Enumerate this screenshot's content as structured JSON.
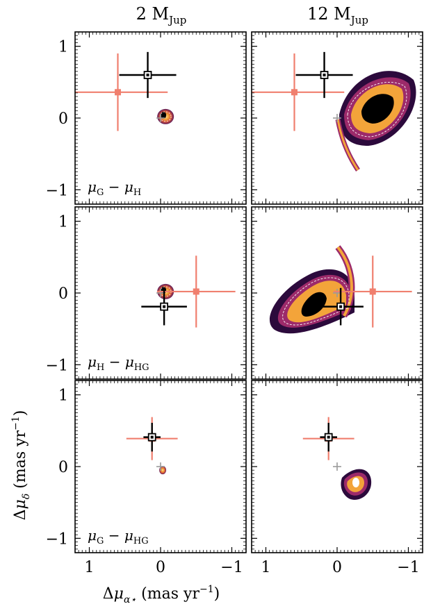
{
  "chart_data": {
    "type": "scatter",
    "column_titles": [
      "2 M_Jup",
      "12 M_Jup"
    ],
    "column_title_parts": [
      {
        "main": "2 M",
        "sub": "Jup"
      },
      {
        "main": "12 M",
        "sub": "Jup"
      }
    ],
    "row_labels": [
      {
        "text": "μG − μH",
        "a": "μ",
        "as": "G",
        "b": "μ",
        "bs": "H"
      },
      {
        "text": "μH − μHG",
        "a": "μ",
        "as": "H",
        "b": "μ",
        "bs": "HG"
      },
      {
        "text": "μG − μHG",
        "a": "μ",
        "as": "G",
        "b": "μ",
        "bs": "HG"
      }
    ],
    "xlabel": "Δμα⋆ (mas yr−1)",
    "ylabel": "Δμδ (mas yr−1)",
    "xlim": [
      1.2,
      -1.2
    ],
    "ylim": [
      -1.2,
      1.2
    ],
    "x_ticks": [
      "1",
      "0",
      "−1"
    ],
    "y_ticks": [
      "1",
      "0",
      "−1"
    ],
    "colors": {
      "observed_gaia": "#f07f6e",
      "observed_black": "#000000",
      "origin_marker": "#9a9a9a",
      "density_low": "#2c0a3c",
      "density_mid": "#9c2a6a",
      "density_high": "#f3a43a",
      "density_peak": "#fde5a0"
    },
    "panels": [
      {
        "row": 0,
        "col": 0,
        "black": {
          "x": 0.18,
          "y": 0.6,
          "xerr": 0.4,
          "yerr": 0.32
        },
        "salmon": {
          "x": 0.6,
          "y": 0.36,
          "xerr": 0.7,
          "yerr": 0.54
        },
        "cloud": "small"
      },
      {
        "row": 0,
        "col": 1,
        "black": {
          "x": 0.18,
          "y": 0.6,
          "xerr": 0.4,
          "yerr": 0.32
        },
        "salmon": {
          "x": 0.6,
          "y": 0.36,
          "xerr": 0.7,
          "yerr": 0.54
        },
        "cloud": "large_top"
      },
      {
        "row": 1,
        "col": 0,
        "black": {
          "x": -0.05,
          "y": -0.19,
          "xerr": 0.32,
          "yerr": 0.26
        },
        "salmon": {
          "x": -0.5,
          "y": 0.02,
          "xerr": 0.55,
          "yerr": 0.5
        },
        "cloud": "small"
      },
      {
        "row": 1,
        "col": 1,
        "black": {
          "x": -0.05,
          "y": -0.19,
          "xerr": 0.32,
          "yerr": 0.26
        },
        "salmon": {
          "x": -0.5,
          "y": 0.02,
          "xerr": 0.55,
          "yerr": 0.5
        },
        "cloud": "large_mid"
      },
      {
        "row": 2,
        "col": 0,
        "black": {
          "x": 0.12,
          "y": 0.41,
          "xerr": 0.12,
          "yerr": 0.2
        },
        "salmon": {
          "x": 0.12,
          "y": 0.39,
          "xerr": 0.36,
          "yerr": 0.3
        },
        "cloud": "tiny"
      },
      {
        "row": 2,
        "col": 1,
        "black": {
          "x": 0.12,
          "y": 0.41,
          "xerr": 0.12,
          "yerr": 0.2
        },
        "salmon": {
          "x": 0.12,
          "y": 0.39,
          "xerr": 0.36,
          "yerr": 0.3
        },
        "cloud": "medium"
      }
    ]
  }
}
